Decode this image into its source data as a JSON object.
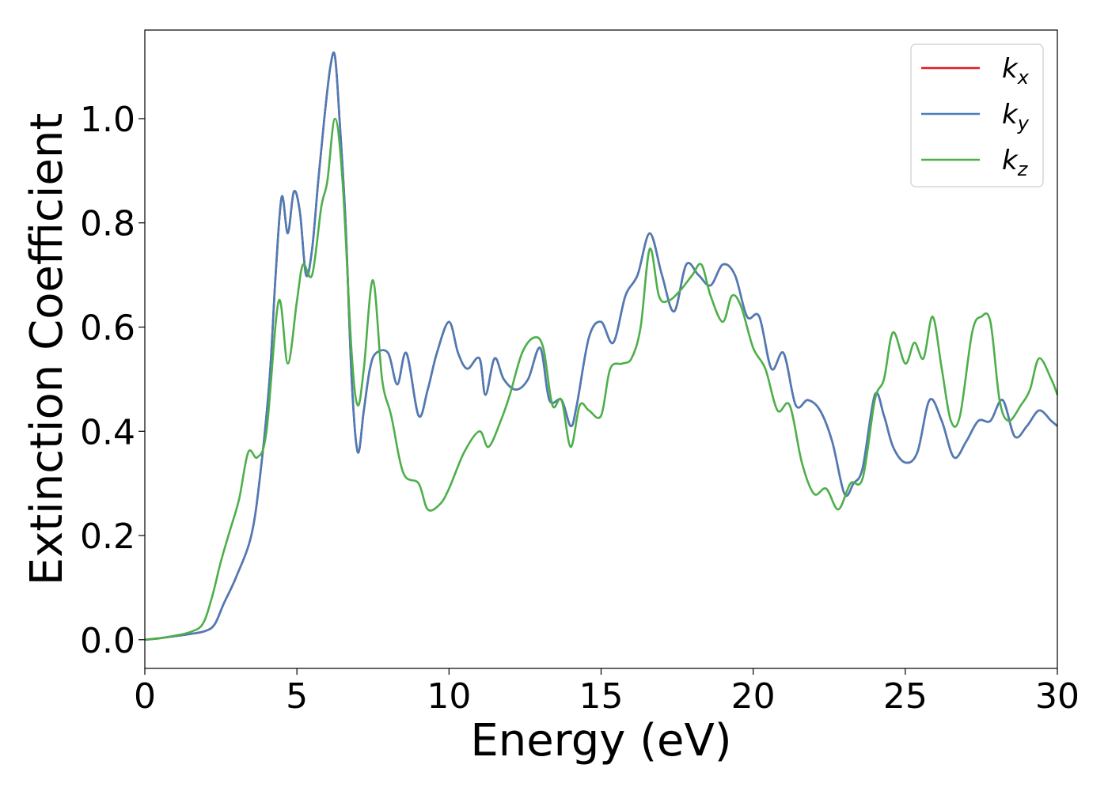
{
  "chart_data": {
    "type": "line",
    "title": "",
    "xlabel": "Energy (eV)",
    "ylabel": "Extinction Coefficient",
    "xlim": [
      0,
      30
    ],
    "ylim": [
      -0.055,
      1.17
    ],
    "xticks": [
      0,
      5,
      10,
      15,
      20,
      25,
      30
    ],
    "xtick_labels": [
      "0",
      "5",
      "10",
      "15",
      "20",
      "25",
      "30"
    ],
    "yticks": [
      0.0,
      0.2,
      0.4,
      0.6,
      0.8,
      1.0
    ],
    "ytick_labels": [
      "0.0",
      "0.2",
      "0.4",
      "0.6",
      "0.8",
      "1.0"
    ],
    "grid": false,
    "legend_position": "top-right",
    "series": [
      {
        "name": "k_x",
        "label_base": "k",
        "label_sub": "x",
        "color": "#e41a1c",
        "x": [
          0,
          0.5,
          1,
          1.5,
          2,
          2.3,
          2.6,
          3,
          3.5,
          3.8,
          4.1,
          4.3,
          4.5,
          4.7,
          4.9,
          5.1,
          5.3,
          5.5,
          5.7,
          5.9,
          6.1,
          6.25,
          6.4,
          6.6,
          6.8,
          7,
          7.2,
          7.4,
          7.6,
          8,
          8.3,
          8.6,
          9,
          9.3,
          9.6,
          10,
          10.3,
          10.6,
          11,
          11.2,
          11.5,
          11.8,
          12.2,
          12.6,
          13,
          13.3,
          13.7,
          14,
          14.2,
          14.6,
          15,
          15.4,
          15.8,
          16.2,
          16.6,
          17,
          17.4,
          17.8,
          18.2,
          18.6,
          19,
          19.4,
          19.8,
          20.2,
          20.6,
          21,
          21.4,
          21.8,
          22.2,
          22.6,
          23,
          23.3,
          23.6,
          24,
          24.3,
          24.6,
          25,
          25.4,
          25.8,
          26.2,
          26.6,
          27,
          27.4,
          27.8,
          28.2,
          28.6,
          29,
          29.4,
          29.8,
          30
        ],
        "y": [
          0,
          0.003,
          0.007,
          0.011,
          0.017,
          0.03,
          0.07,
          0.12,
          0.2,
          0.32,
          0.5,
          0.7,
          0.85,
          0.78,
          0.86,
          0.82,
          0.7,
          0.75,
          0.88,
          1.0,
          1.1,
          1.12,
          1.0,
          0.8,
          0.5,
          0.36,
          0.44,
          0.52,
          0.55,
          0.55,
          0.49,
          0.55,
          0.43,
          0.48,
          0.55,
          0.61,
          0.55,
          0.52,
          0.54,
          0.47,
          0.54,
          0.5,
          0.48,
          0.5,
          0.56,
          0.46,
          0.46,
          0.41,
          0.45,
          0.58,
          0.61,
          0.57,
          0.66,
          0.7,
          0.78,
          0.7,
          0.63,
          0.72,
          0.7,
          0.68,
          0.72,
          0.7,
          0.62,
          0.62,
          0.52,
          0.55,
          0.45,
          0.46,
          0.44,
          0.38,
          0.28,
          0.3,
          0.33,
          0.47,
          0.43,
          0.37,
          0.34,
          0.36,
          0.46,
          0.42,
          0.35,
          0.38,
          0.42,
          0.42,
          0.46,
          0.39,
          0.41,
          0.44,
          0.42,
          0.41
        ]
      },
      {
        "name": "k_y",
        "label_base": "k",
        "label_sub": "y",
        "color": "#4a7db8",
        "x": [
          0,
          0.5,
          1,
          1.5,
          2,
          2.3,
          2.6,
          3,
          3.5,
          3.8,
          4.1,
          4.3,
          4.5,
          4.7,
          4.9,
          5.1,
          5.3,
          5.5,
          5.7,
          5.9,
          6.1,
          6.25,
          6.4,
          6.6,
          6.8,
          7,
          7.2,
          7.4,
          7.6,
          8,
          8.3,
          8.6,
          9,
          9.3,
          9.6,
          10,
          10.3,
          10.6,
          11,
          11.2,
          11.5,
          11.8,
          12.2,
          12.6,
          13,
          13.3,
          13.7,
          14,
          14.2,
          14.6,
          15,
          15.4,
          15.8,
          16.2,
          16.6,
          17,
          17.4,
          17.8,
          18.2,
          18.6,
          19,
          19.4,
          19.8,
          20.2,
          20.6,
          21,
          21.4,
          21.8,
          22.2,
          22.6,
          23,
          23.3,
          23.6,
          24,
          24.3,
          24.6,
          25,
          25.4,
          25.8,
          26.2,
          26.6,
          27,
          27.4,
          27.8,
          28.2,
          28.6,
          29,
          29.4,
          29.8,
          30
        ],
        "y": [
          0,
          0.003,
          0.007,
          0.011,
          0.017,
          0.03,
          0.07,
          0.12,
          0.2,
          0.32,
          0.5,
          0.7,
          0.85,
          0.78,
          0.86,
          0.82,
          0.7,
          0.75,
          0.88,
          1.0,
          1.1,
          1.12,
          1.0,
          0.8,
          0.5,
          0.36,
          0.44,
          0.52,
          0.55,
          0.55,
          0.49,
          0.55,
          0.43,
          0.48,
          0.55,
          0.61,
          0.55,
          0.52,
          0.54,
          0.47,
          0.54,
          0.5,
          0.48,
          0.5,
          0.56,
          0.46,
          0.46,
          0.41,
          0.45,
          0.58,
          0.61,
          0.57,
          0.66,
          0.7,
          0.78,
          0.7,
          0.63,
          0.72,
          0.7,
          0.68,
          0.72,
          0.7,
          0.62,
          0.62,
          0.52,
          0.55,
          0.45,
          0.46,
          0.44,
          0.38,
          0.28,
          0.3,
          0.33,
          0.47,
          0.43,
          0.37,
          0.34,
          0.36,
          0.46,
          0.42,
          0.35,
          0.38,
          0.42,
          0.42,
          0.46,
          0.39,
          0.41,
          0.44,
          0.42,
          0.41
        ]
      },
      {
        "name": "k_z",
        "label_base": "k",
        "label_sub": "z",
        "color": "#4daf4a",
        "x": [
          0,
          0.5,
          1,
          1.5,
          1.9,
          2.2,
          2.5,
          2.8,
          3.1,
          3.4,
          3.7,
          4,
          4.4,
          4.7,
          5,
          5.2,
          5.5,
          5.8,
          6.0,
          6.25,
          6.5,
          6.8,
          7,
          7.2,
          7.5,
          7.8,
          8.1,
          8.5,
          9,
          9.3,
          9.7,
          10,
          10.5,
          11,
          11.3,
          11.7,
          12,
          12.4,
          12.8,
          13.1,
          13.4,
          13.7,
          14,
          14.3,
          14.6,
          15,
          15.3,
          15.7,
          16,
          16.3,
          16.6,
          16.9,
          17.2,
          17.6,
          18,
          18.3,
          18.6,
          19,
          19.3,
          19.6,
          20,
          20.4,
          20.8,
          21.2,
          21.6,
          22,
          22.4,
          22.8,
          23.2,
          23.6,
          24,
          24.3,
          24.6,
          25,
          25.3,
          25.6,
          25.9,
          26.2,
          26.5,
          26.8,
          27.2,
          27.5,
          27.8,
          28.1,
          28.4,
          28.8,
          29.1,
          29.4,
          29.8,
          30
        ],
        "y": [
          0,
          0.003,
          0.008,
          0.015,
          0.03,
          0.08,
          0.15,
          0.21,
          0.27,
          0.36,
          0.35,
          0.4,
          0.65,
          0.53,
          0.65,
          0.72,
          0.7,
          0.83,
          0.88,
          1.0,
          0.88,
          0.55,
          0.45,
          0.52,
          0.69,
          0.5,
          0.43,
          0.32,
          0.3,
          0.25,
          0.26,
          0.29,
          0.36,
          0.4,
          0.37,
          0.42,
          0.47,
          0.55,
          0.58,
          0.56,
          0.45,
          0.46,
          0.37,
          0.45,
          0.44,
          0.43,
          0.52,
          0.53,
          0.54,
          0.6,
          0.75,
          0.66,
          0.65,
          0.67,
          0.7,
          0.72,
          0.66,
          0.61,
          0.66,
          0.64,
          0.56,
          0.52,
          0.44,
          0.45,
          0.34,
          0.28,
          0.29,
          0.25,
          0.3,
          0.31,
          0.46,
          0.5,
          0.59,
          0.53,
          0.57,
          0.54,
          0.62,
          0.52,
          0.42,
          0.43,
          0.59,
          0.62,
          0.61,
          0.46,
          0.42,
          0.45,
          0.48,
          0.54,
          0.5,
          0.47
        ]
      }
    ]
  }
}
